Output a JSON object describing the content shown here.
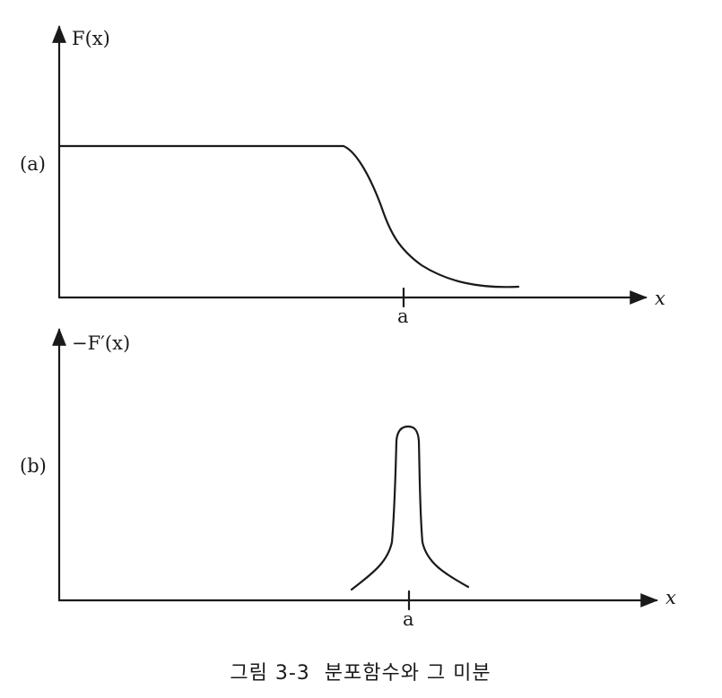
{
  "panel_a": {
    "panel_label": "(a)",
    "y_axis_label": "F(x)",
    "x_axis_label": "x",
    "tick_label": "a"
  },
  "panel_b": {
    "panel_label": "(b)",
    "y_axis_label": "−F′(x)",
    "x_axis_label": "x",
    "tick_label": "a"
  },
  "caption": "그림 3-3  분포함수와 그 미분",
  "colors": {
    "ink": "#1a1a1a",
    "background": "#ffffff"
  }
}
